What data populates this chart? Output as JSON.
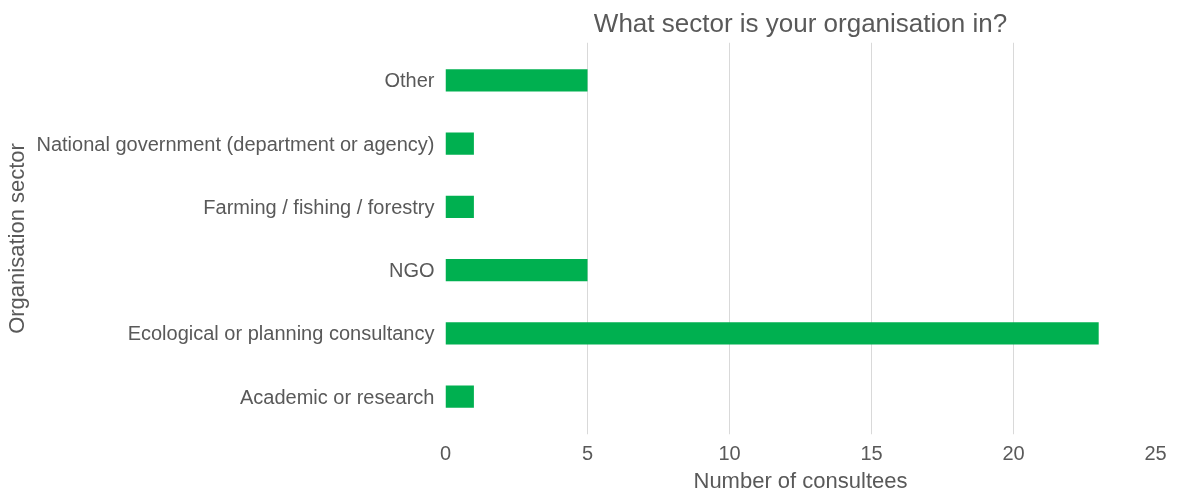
{
  "chart_data": {
    "type": "bar",
    "orientation": "horizontal",
    "title": "What sector is your organisation in?",
    "xlabel": "Number of consultees",
    "ylabel": "Organisation sector",
    "categories": [
      "Other",
      "National government (department or agency)",
      "Farming / fishing / forestry",
      "NGO",
      "Ecological or planning consultancy",
      "Academic or research"
    ],
    "values": [
      5,
      1,
      1,
      5,
      23,
      1
    ],
    "color": "#00b050",
    "xlim": [
      0,
      25
    ],
    "xticks": [
      0,
      5,
      10,
      15,
      20,
      25
    ],
    "grid": "x"
  }
}
